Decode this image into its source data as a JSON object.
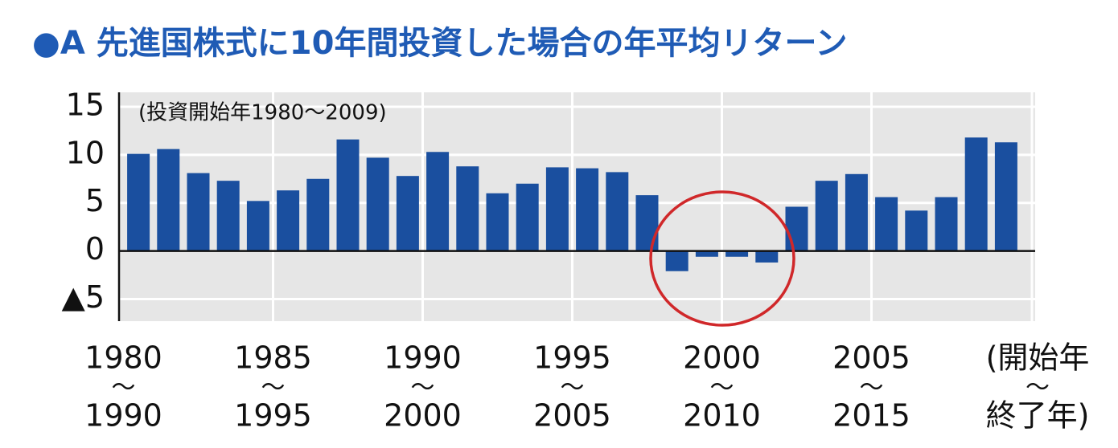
{
  "chart_data": {
    "type": "bar",
    "title": "●A 先進国株式に10年間投資した場合の年平均リターン",
    "annotation": "(投資開始年1980〜2009)",
    "categories": [
      {
        "from": "1980",
        "sep": "〜",
        "to": "1990"
      },
      null,
      null,
      null,
      null,
      {
        "from": "1985",
        "sep": "〜",
        "to": "1995"
      },
      null,
      null,
      null,
      null,
      {
        "from": "1990",
        "sep": "〜",
        "to": "2000"
      },
      null,
      null,
      null,
      null,
      {
        "from": "1995",
        "sep": "〜",
        "to": "2005"
      },
      null,
      null,
      null,
      null,
      {
        "from": "2000",
        "sep": "〜",
        "to": "2010"
      },
      null,
      null,
      null,
      null,
      {
        "from": "2005",
        "sep": "〜",
        "to": "2015"
      },
      null,
      null,
      null,
      null
    ],
    "x_label": {
      "from": "(開始年",
      "sep": "〜",
      "to": "終了年)"
    },
    "values": [
      10.1,
      10.6,
      8.1,
      7.3,
      5.2,
      6.3,
      7.5,
      11.6,
      9.7,
      7.8,
      10.3,
      8.8,
      6.0,
      7.0,
      8.7,
      8.6,
      8.2,
      5.8,
      -2.1,
      -0.6,
      -0.6,
      -1.2,
      4.6,
      7.3,
      8.0,
      5.6,
      4.2,
      5.6,
      11.8,
      11.3
    ],
    "color": "#1a4f9f",
    "ylim": [
      -7.3,
      16.5
    ],
    "yticks": [
      15,
      10,
      5,
      0,
      {
        "value": -5,
        "label": "▲5"
      }
    ],
    "grid": true
  }
}
